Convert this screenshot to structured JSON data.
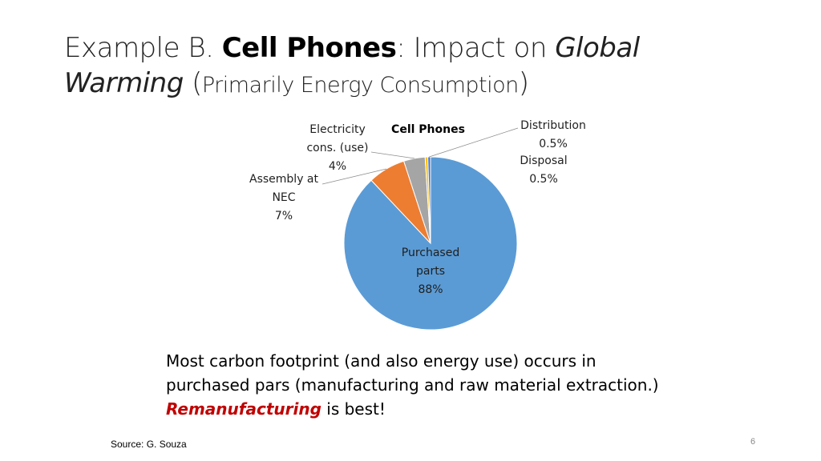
{
  "title": {
    "prefix": "Example B. ",
    "bold": "Cell Phones",
    "middle": ": Impact on ",
    "italic1": "Global",
    "italic2": "Warming",
    "paren_open": " (",
    "small": "Primarily Energy Consumption",
    "paren_close": ")"
  },
  "chart_data": {
    "type": "pie",
    "title": "Cell Phones",
    "slices": [
      {
        "name": "Purchased parts",
        "lines": [
          "Purchased",
          "parts"
        ],
        "value": 88,
        "label": "88%",
        "color": "#5b9bd5"
      },
      {
        "name": "Assembly at NEC",
        "lines": [
          "Assembly at",
          "NEC"
        ],
        "value": 7,
        "label": "7%",
        "color": "#ed7d31"
      },
      {
        "name": "Electricity cons. (use)",
        "lines": [
          "Electricity",
          "cons. (use)"
        ],
        "value": 4,
        "label": "4%",
        "color": "#a5a5a5"
      },
      {
        "name": "Disposal",
        "lines": [
          "Disposal"
        ],
        "value": 0.5,
        "label": "0.5%",
        "color": "#ffc000"
      },
      {
        "name": "Distribution",
        "lines": [
          "Distribution"
        ],
        "value": 0.5,
        "label": "0.5%",
        "color": "#4472c4"
      }
    ]
  },
  "caption": {
    "line1": "Most carbon footprint (and also energy use) occurs in",
    "line2": "purchased pars (manufacturing and raw material extraction.)",
    "emph": "Remanufacturing",
    "rest": " is best!"
  },
  "source": "Source: G. Souza",
  "page_number": "6"
}
